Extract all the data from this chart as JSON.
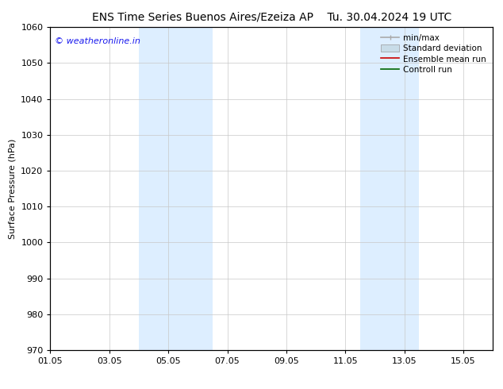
{
  "title_left": "ENS Time Series Buenos Aires/Ezeiza AP",
  "title_right": "Tu. 30.04.2024 19 UTC",
  "ylabel": "Surface Pressure (hPa)",
  "ylim": [
    970,
    1060
  ],
  "yticks": [
    970,
    980,
    990,
    1000,
    1010,
    1020,
    1030,
    1040,
    1050,
    1060
  ],
  "xlim_start": 0,
  "xlim_end": 15,
  "xtick_labels": [
    "01.05",
    "03.05",
    "05.05",
    "07.05",
    "09.05",
    "11.05",
    "13.05",
    "15.05"
  ],
  "xtick_positions": [
    0,
    2,
    4,
    6,
    8,
    10,
    12,
    14
  ],
  "shaded_bands": [
    {
      "x_start": 3.0,
      "x_end": 4.0,
      "color": "#ddeeff"
    },
    {
      "x_start": 4.0,
      "x_end": 5.5,
      "color": "#ddeeff"
    },
    {
      "x_start": 10.5,
      "x_end": 12.0,
      "color": "#ddeeff"
    },
    {
      "x_start": 12.0,
      "x_end": 12.5,
      "color": "#ddeeff"
    }
  ],
  "shaded_bands2": [
    {
      "x_start": 3.0,
      "x_end": 5.5,
      "color": "#ddeeff"
    },
    {
      "x_start": 10.5,
      "x_end": 12.5,
      "color": "#ddeeff"
    }
  ],
  "watermark_text": "© weatheronline.in",
  "watermark_color": "#1a1aee",
  "legend_items": [
    {
      "label": "min/max",
      "color": "#aaaaaa",
      "lw": 1.2,
      "type": "minmax"
    },
    {
      "label": "Standard deviation",
      "color": "#c8dce8",
      "lw": 8,
      "type": "band"
    },
    {
      "label": "Ensemble mean run",
      "color": "#cc0000",
      "lw": 1.2,
      "type": "line"
    },
    {
      "label": "Controll run",
      "color": "#006600",
      "lw": 1.2,
      "type": "line"
    }
  ],
  "bg_color": "#ffffff",
  "grid_color": "#c8c8c8",
  "title_fontsize": 10,
  "tick_fontsize": 8,
  "ylabel_fontsize": 8,
  "legend_fontsize": 7.5
}
